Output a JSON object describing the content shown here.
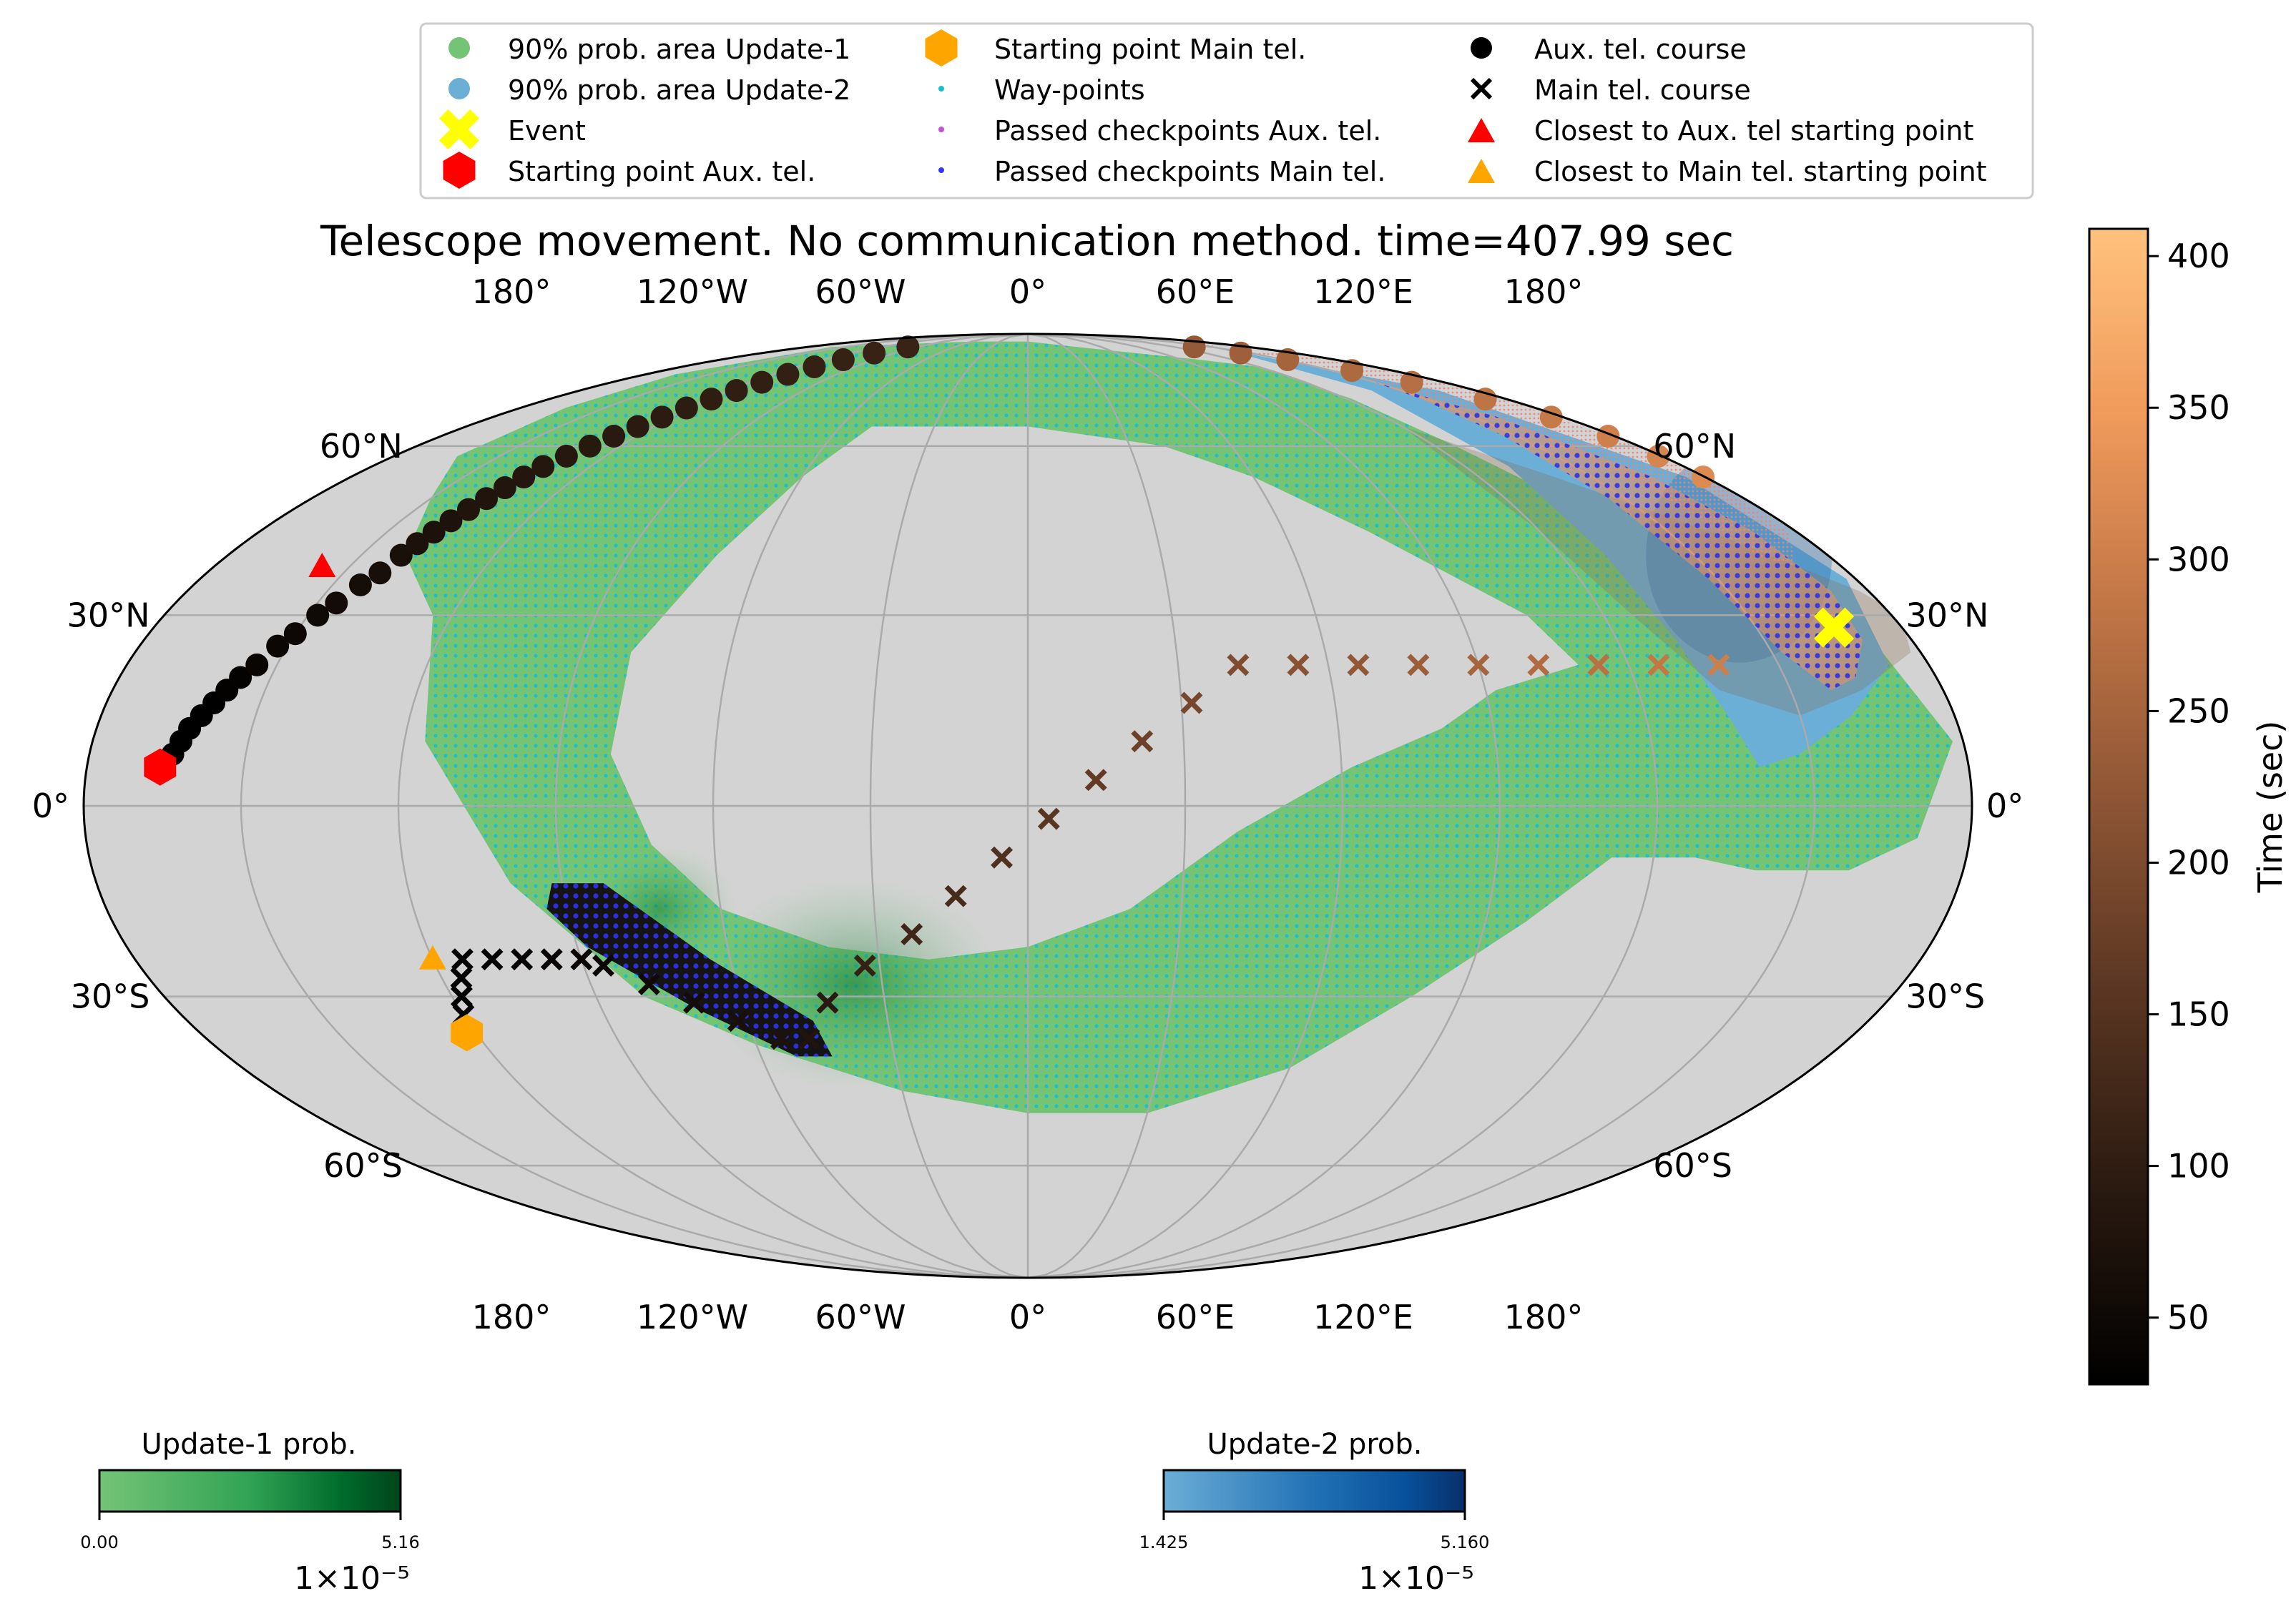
{
  "chart_data": {
    "type": "scatter",
    "projection": "mollweide",
    "title": "Telescope movement. No communication method. time=407.99 sec",
    "lon_ticks": [
      "180°",
      "120°W",
      "60°W",
      "0°",
      "60°E",
      "120°E",
      "180°"
    ],
    "lat_ticks": [
      {
        "lat": 60,
        "left": "60°N",
        "right": "60°N"
      },
      {
        "lat": 30,
        "left": "30°N",
        "right": "30°N"
      },
      {
        "lat": 0,
        "left": "0°",
        "right": "0°"
      },
      {
        "lat": -30,
        "left": "30°S",
        "right": "30°S"
      },
      {
        "lat": -60,
        "left": "60°S",
        "right": "60°S"
      }
    ],
    "grid": true,
    "background_color": "#d3d3d3",
    "legend": {
      "placement": "top-center",
      "entries": [
        {
          "label": "90% prob. area Update-1",
          "marker": "circle",
          "color": "#74c476"
        },
        {
          "label": "90% prob. area Update-2",
          "marker": "circle",
          "color": "#6baed6"
        },
        {
          "label": "Event",
          "marker": "X",
          "color": "#ffff00"
        },
        {
          "label": "Starting point Aux. tel.",
          "marker": "hexagon",
          "color": "#ff0000"
        },
        {
          "label": "Starting point Main tel.",
          "marker": "hexagon",
          "color": "#ffa500"
        },
        {
          "label": "Way-points",
          "marker": "dot",
          "color": "#17becf"
        },
        {
          "label": "Passed checkpoints  Aux. tel.",
          "marker": "dot",
          "color": "#c44dd9"
        },
        {
          "label": "Passed checkpoints Main tel.",
          "marker": "dot",
          "color": "#3333ff"
        },
        {
          "label": "Aux. tel. course",
          "marker": "circle",
          "color": "#000000"
        },
        {
          "label": "Main tel. course",
          "marker": "x",
          "color": "#000000"
        },
        {
          "label": "Closest to  Aux. tel starting point",
          "marker": "triangle",
          "color": "#ff0000"
        },
        {
          "label": "Closest to   Main tel. starting point",
          "marker": "triangle",
          "color": "#ffa500"
        }
      ]
    },
    "prob_area_update1_outline": [
      [
        -166,
        76
      ],
      [
        -160,
        84
      ],
      [
        -60,
        86
      ],
      [
        0,
        86
      ],
      [
        40,
        84
      ],
      [
        100,
        80
      ],
      [
        120,
        78
      ],
      [
        122,
        70
      ],
      [
        126,
        60
      ],
      [
        134,
        50
      ],
      [
        150,
        40
      ],
      [
        172,
        30
      ],
      [
        178,
        10
      ],
      [
        170,
        -5
      ],
      [
        158,
        -10
      ],
      [
        140,
        -10
      ],
      [
        128,
        -8
      ],
      [
        112,
        -8
      ],
      [
        98,
        -18
      ],
      [
        80,
        -30
      ],
      [
        60,
        -42
      ],
      [
        30,
        -50
      ],
      [
        0,
        -50
      ],
      [
        -30,
        -46
      ],
      [
        -60,
        -38
      ],
      [
        -80,
        -30
      ],
      [
        -100,
        -12
      ],
      [
        -116,
        10
      ],
      [
        -124,
        30
      ],
      [
        -140,
        40
      ],
      [
        -150,
        50
      ],
      [
        -162,
        58
      ],
      [
        -164,
        68
      ]
    ],
    "prob_area_update1_hole": [
      [
        -50,
        64
      ],
      [
        0,
        64
      ],
      [
        40,
        60
      ],
      [
        60,
        54
      ],
      [
        80,
        44
      ],
      [
        104,
        30
      ],
      [
        110,
        22
      ],
      [
        92,
        18
      ],
      [
        80,
        12
      ],
      [
        62,
        6
      ],
      [
        40,
        -4
      ],
      [
        20,
        -16
      ],
      [
        0,
        -22
      ],
      [
        -20,
        -24
      ],
      [
        -40,
        -22
      ],
      [
        -60,
        -16
      ],
      [
        -72,
        -6
      ],
      [
        -80,
        8
      ],
      [
        -80,
        24
      ],
      [
        -70,
        40
      ],
      [
        -60,
        54
      ]
    ],
    "prob_area_update2_outline": [
      [
        150,
        84
      ],
      [
        165,
        72
      ],
      [
        175,
        54
      ],
      [
        178,
        36
      ],
      [
        172,
        22
      ],
      [
        160,
        14
      ],
      [
        148,
        8
      ],
      [
        140,
        6
      ],
      [
        136,
        14
      ],
      [
        132,
        26
      ],
      [
        130,
        40
      ],
      [
        132,
        56
      ],
      [
        138,
        72
      ],
      [
        142,
        82
      ]
    ],
    "event": {
      "lon": 166,
      "lat": 28
    },
    "aux_start": {
      "lon": -166,
      "lat": 6
    },
    "main_start": {
      "lon": -122,
      "lat": -36
    },
    "aux_closest": {
      "lon": -156,
      "lat": 38
    },
    "main_closest": {
      "lon": -120,
      "lat": -24
    },
    "time_range": [
      0,
      407.99
    ],
    "aux_course": [
      {
        "lon": -166,
        "lat": 6,
        "t": 8
      },
      {
        "lon": -164,
        "lat": 8,
        "t": 12
      },
      {
        "lon": -163,
        "lat": 10,
        "t": 16
      },
      {
        "lon": -162,
        "lat": 12,
        "t": 20
      },
      {
        "lon": -160.5,
        "lat": 14,
        "t": 24
      },
      {
        "lon": -159,
        "lat": 16,
        "t": 28
      },
      {
        "lon": -157.5,
        "lat": 18,
        "t": 32
      },
      {
        "lon": -156,
        "lat": 20,
        "t": 36
      },
      {
        "lon": -154,
        "lat": 22,
        "t": 40
      },
      {
        "lon": -152,
        "lat": 25,
        "t": 44
      },
      {
        "lon": -150,
        "lat": 27,
        "t": 48
      },
      {
        "lon": -148,
        "lat": 30,
        "t": 52
      },
      {
        "lon": -146,
        "lat": 32,
        "t": 56
      },
      {
        "lon": -144,
        "lat": 35,
        "t": 60
      },
      {
        "lon": -142,
        "lat": 37,
        "t": 64
      },
      {
        "lon": -141,
        "lat": 40,
        "t": 68
      },
      {
        "lon": -140,
        "lat": 42,
        "t": 70
      },
      {
        "lon": -139,
        "lat": 44,
        "t": 72
      },
      {
        "lon": -138,
        "lat": 46,
        "t": 74
      },
      {
        "lon": -137,
        "lat": 48,
        "t": 76
      },
      {
        "lon": -136,
        "lat": 50,
        "t": 78
      },
      {
        "lon": -135,
        "lat": 52,
        "t": 80
      },
      {
        "lon": -134,
        "lat": 54,
        "t": 82
      },
      {
        "lon": -133,
        "lat": 56,
        "t": 84
      },
      {
        "lon": -131,
        "lat": 58,
        "t": 86
      },
      {
        "lon": -129,
        "lat": 60,
        "t": 88
      },
      {
        "lon": -127,
        "lat": 62,
        "t": 90
      },
      {
        "lon": -125,
        "lat": 64,
        "t": 92
      },
      {
        "lon": -123,
        "lat": 66,
        "t": 94
      },
      {
        "lon": -121,
        "lat": 68,
        "t": 96
      },
      {
        "lon": -119,
        "lat": 70,
        "t": 98
      },
      {
        "lon": -117,
        "lat": 72,
        "t": 100
      },
      {
        "lon": -115,
        "lat": 74,
        "t": 102
      },
      {
        "lon": -113,
        "lat": 76,
        "t": 104
      },
      {
        "lon": -111,
        "lat": 78,
        "t": 106
      },
      {
        "lon": -108,
        "lat": 80,
        "t": 108
      },
      {
        "lon": -104,
        "lat": 82,
        "t": 110
      },
      {
        "lon": -98,
        "lat": 84,
        "t": 112
      },
      {
        "lon": 136,
        "lat": 84,
        "t": 230
      },
      {
        "lon": 144,
        "lat": 82,
        "t": 240
      },
      {
        "lon": 152,
        "lat": 80,
        "t": 250
      },
      {
        "lon": 160,
        "lat": 77,
        "t": 260
      },
      {
        "lon": 166,
        "lat": 74,
        "t": 270
      },
      {
        "lon": 172,
        "lat": 70,
        "t": 280
      },
      {
        "lon": 176,
        "lat": 66,
        "t": 290
      },
      {
        "lon": 178,
        "lat": 62,
        "t": 300
      },
      {
        "lon": 179,
        "lat": 58,
        "t": 310
      },
      {
        "lon": 179.5,
        "lat": 54,
        "t": 320
      }
    ],
    "main_course": [
      {
        "lon": -122,
        "lat": -36,
        "t": 10
      },
      {
        "lon": -120,
        "lat": -33,
        "t": 14
      },
      {
        "lon": -118,
        "lat": -30,
        "t": 18
      },
      {
        "lon": -116,
        "lat": -27,
        "t": 22
      },
      {
        "lon": -114,
        "lat": -24,
        "t": 26
      },
      {
        "lon": -108,
        "lat": -24,
        "t": 30
      },
      {
        "lon": -102,
        "lat": -24,
        "t": 34
      },
      {
        "lon": -96,
        "lat": -24,
        "t": 38
      },
      {
        "lon": -90,
        "lat": -24,
        "t": 42
      },
      {
        "lon": -86,
        "lat": -25,
        "t": 46
      },
      {
        "lon": -78,
        "lat": -28,
        "t": 52
      },
      {
        "lon": -70,
        "lat": -31,
        "t": 58
      },
      {
        "lon": -62,
        "lat": -34,
        "t": 64
      },
      {
        "lon": -54,
        "lat": -37,
        "t": 70
      },
      {
        "lon": -48,
        "lat": -37,
        "t": 76
      },
      {
        "lon": -42,
        "lat": -31,
        "t": 90
      },
      {
        "lon": -33,
        "lat": -25,
        "t": 105
      },
      {
        "lon": -23,
        "lat": -20,
        "t": 118
      },
      {
        "lon": -14,
        "lat": -14,
        "t": 130
      },
      {
        "lon": -5,
        "lat": -8,
        "t": 142
      },
      {
        "lon": 4,
        "lat": -2,
        "t": 154
      },
      {
        "lon": 13,
        "lat": 4,
        "t": 166
      },
      {
        "lon": 22,
        "lat": 10,
        "t": 178
      },
      {
        "lon": 32,
        "lat": 16,
        "t": 190
      },
      {
        "lon": 42,
        "lat": 22,
        "t": 202
      },
      {
        "lon": 54,
        "lat": 22,
        "t": 214
      },
      {
        "lon": 66,
        "lat": 22,
        "t": 226
      },
      {
        "lon": 78,
        "lat": 22,
        "t": 238
      },
      {
        "lon": 90,
        "lat": 22,
        "t": 250
      },
      {
        "lon": 102,
        "lat": 22,
        "t": 262
      },
      {
        "lon": 114,
        "lat": 22,
        "t": 274
      },
      {
        "lon": 126,
        "lat": 22,
        "t": 286
      },
      {
        "lon": 138,
        "lat": 22,
        "t": 298
      }
    ],
    "main_checkpoint_region": [
      [
        -92,
        -12
      ],
      [
        -82,
        -12
      ],
      [
        -64,
        -24
      ],
      [
        -46,
        -34
      ],
      [
        -44,
        -40
      ],
      [
        -52,
        -40
      ],
      [
        -70,
        -32
      ],
      [
        -88,
        -22
      ],
      [
        -94,
        -16
      ]
    ],
    "aux_checkpoint_region": [
      [
        150,
        74
      ],
      [
        158,
        66
      ],
      [
        166,
        54
      ],
      [
        170,
        44
      ],
      [
        172,
        34
      ],
      [
        170,
        26
      ],
      [
        164,
        20
      ],
      [
        158,
        18
      ],
      [
        152,
        24
      ],
      [
        148,
        36
      ],
      [
        146,
        50
      ],
      [
        146,
        62
      ],
      [
        148,
        70
      ]
    ],
    "colorbar_time": {
      "label": "Time (sec)",
      "min": 28,
      "max": 409,
      "ticks": [
        50,
        100,
        150,
        200,
        250,
        300,
        350,
        400
      ]
    },
    "colorbar_update1": {
      "title": "Update-1 prob.",
      "min_label": "0.00",
      "max_label": "5.16",
      "scale": "1×10⁻⁵"
    },
    "colorbar_update2": {
      "title": "Update-2 prob.",
      "min_label": "1.425",
      "max_label": "5.160",
      "scale": "1×10⁻⁵"
    },
    "colors": {
      "update1": "#74c476",
      "update1_dark": "#00441b",
      "waypoint": "#17becf",
      "update2": "#6baed6",
      "update2_dark": "#08306b",
      "aux_checkpoint": "#c44dd9",
      "main_checkpoint": "#3333ff",
      "time_cmap": [
        "#000000",
        "#2a1a10",
        "#5a3622",
        "#8c5434",
        "#c07545",
        "#f09a5c",
        "#ffc27c"
      ]
    }
  }
}
